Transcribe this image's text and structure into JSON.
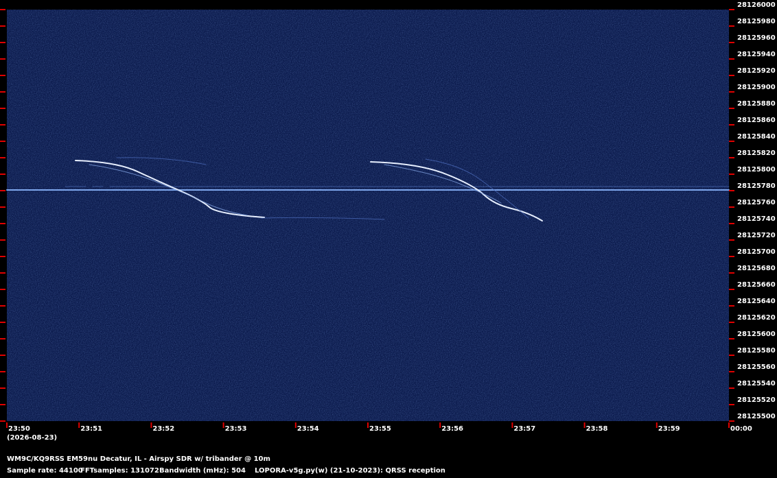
{
  "chart_data": {
    "type": "spectrogram",
    "ylim": [
      28125500,
      28126000
    ],
    "yticks": [
      28125500,
      28125520,
      28125540,
      28125560,
      28125580,
      28125600,
      28125620,
      28125640,
      28125660,
      28125680,
      28125700,
      28125720,
      28125740,
      28125760,
      28125780,
      28125800,
      28125820,
      28125840,
      28125860,
      28125880,
      28125900,
      28125920,
      28125940,
      28125960,
      28125980,
      28126000
    ],
    "categories": [
      "23:50",
      "23:51",
      "23:52",
      "23:53",
      "23:54",
      "23:55",
      "23:56",
      "23:57",
      "23:58",
      "23:59",
      "00:00"
    ],
    "date_label": "(2026-08-23)",
    "station": "WM9C/KQ9RSS EM59nu Decatur, IL - Airspy SDR w/ tribander @ 10m",
    "sample_rate": "Sample rate: 44100",
    "fft_samples": "FFTsamples: 131072",
    "bandwidth": "Bandwidth (mHz): 504",
    "software": "LOPORA-v5g.py(w) (21-10-2023): QRSS reception",
    "tick_color": "#e00000"
  }
}
